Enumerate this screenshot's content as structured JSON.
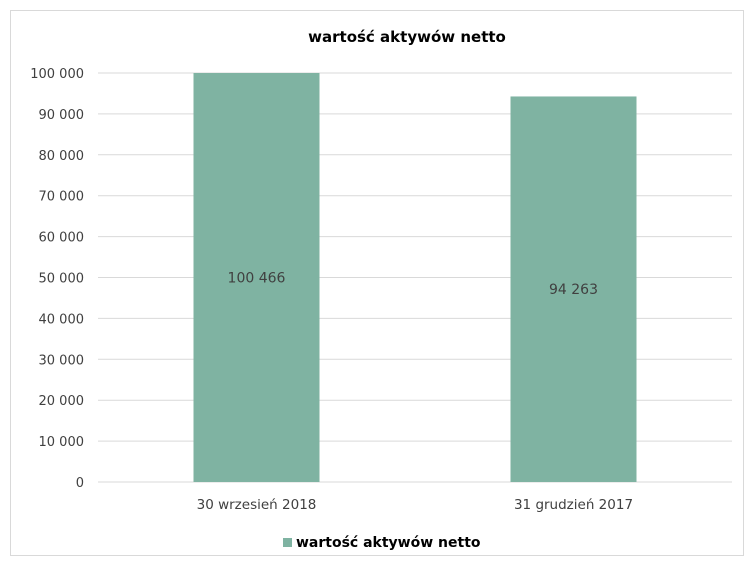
{
  "chart_data": {
    "type": "bar",
    "title": "wartość aktywów netto",
    "categories": [
      "30 wrzesień 2018",
      "31 grudzień 2017"
    ],
    "series": [
      {
        "name": "wartość aktywów netto",
        "values": [
          100466,
          94263
        ],
        "data_labels": [
          "100 466",
          "94 263"
        ],
        "color": "#7fb3a2"
      }
    ],
    "y_ticks": [
      "0",
      "10 000",
      "20 000",
      "30 000",
      "40 000",
      "50 000",
      "60 000",
      "70 000",
      "80 000",
      "90 000",
      "100 000"
    ],
    "ylim": [
      0,
      100000
    ],
    "grid": true,
    "gridline_color": "#d9d9d9",
    "legend_position": "bottom"
  }
}
